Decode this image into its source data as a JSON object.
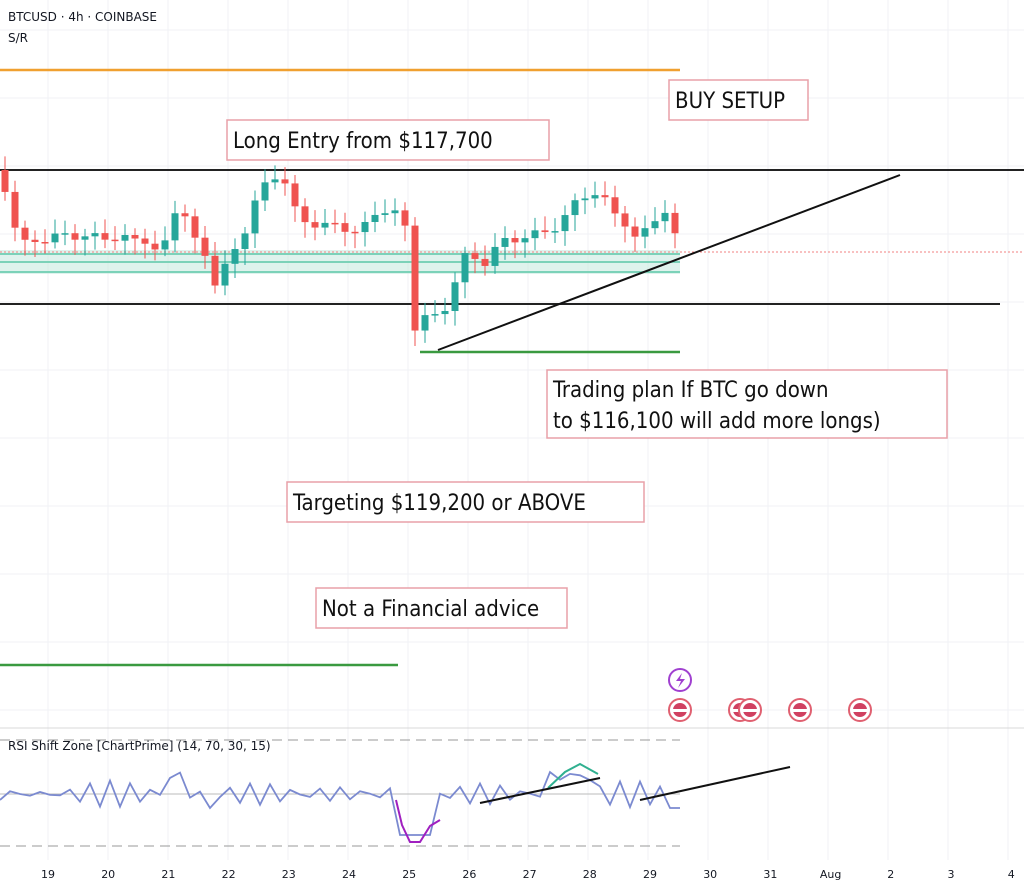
{
  "header": {
    "symbol": "BTCUSD · 4h · COINBASE",
    "indicator": "S/R"
  },
  "annotations": {
    "buy_setup": "BUY SETUP",
    "long_entry": "Long Entry from $117,700",
    "trading_plan": [
      "Trading plan If BTC go down",
      "to $116,100 will add more longs)"
    ],
    "targeting": "Targeting $119,200 or ABOVE",
    "disclaimer": "Not a Financial advice"
  },
  "rsi": {
    "title": "RSI Shift Zone [ChartPrime] (14, 70, 30, 15)"
  },
  "x_axis_labels": [
    "19",
    "20",
    "21",
    "22",
    "23",
    "24",
    "25",
    "26",
    "27",
    "28",
    "29",
    "30",
    "31",
    "Aug",
    "2",
    "3",
    "4"
  ]
}
